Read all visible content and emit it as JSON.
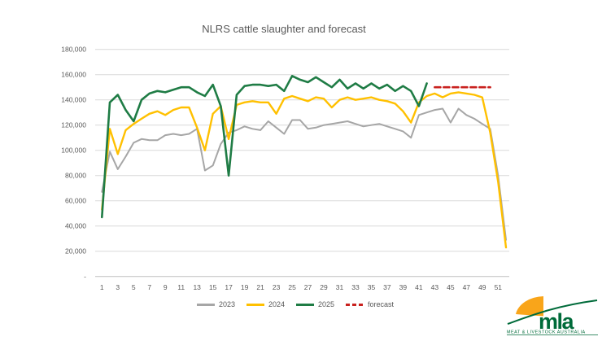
{
  "chart_data": {
    "type": "line",
    "title": "NLRS cattle slaughter and forecast",
    "xlabel": "",
    "ylabel": "",
    "x": [
      1,
      2,
      3,
      4,
      5,
      6,
      7,
      8,
      9,
      10,
      11,
      12,
      13,
      14,
      15,
      16,
      17,
      18,
      19,
      20,
      21,
      22,
      23,
      24,
      25,
      26,
      27,
      28,
      29,
      30,
      31,
      32,
      33,
      34,
      35,
      36,
      37,
      38,
      39,
      40,
      41,
      42,
      43,
      44,
      45,
      46,
      47,
      48,
      49,
      50,
      51,
      52
    ],
    "x_ticks": [
      1,
      3,
      5,
      7,
      9,
      11,
      13,
      15,
      17,
      19,
      21,
      23,
      25,
      27,
      29,
      31,
      33,
      35,
      37,
      39,
      41,
      43,
      45,
      47,
      49,
      51
    ],
    "y_ticks": [
      {
        "value": 0,
        "label": "-"
      },
      {
        "value": 20000,
        "label": "20,000"
      },
      {
        "value": 40000,
        "label": "40,000"
      },
      {
        "value": 60000,
        "label": "60,000"
      },
      {
        "value": 80000,
        "label": "80,000"
      },
      {
        "value": 100000,
        "label": "100,000"
      },
      {
        "value": 120000,
        "label": "120,000"
      },
      {
        "value": 140000,
        "label": "140,000"
      },
      {
        "value": 160000,
        "label": "160,000"
      },
      {
        "value": 180000,
        "label": "180,000"
      }
    ],
    "ylim": [
      0,
      180000
    ],
    "grid": "horizontal",
    "legend_position": "bottom",
    "series": [
      {
        "name": "2023",
        "color": "#a6a6a6",
        "style": "solid",
        "values": [
          67000,
          99000,
          85000,
          95000,
          106000,
          109000,
          108000,
          108000,
          112000,
          113000,
          112000,
          113000,
          117000,
          84000,
          88000,
          105000,
          114000,
          116000,
          119000,
          117000,
          116000,
          123000,
          118000,
          113000,
          124000,
          124000,
          117000,
          118000,
          120000,
          121000,
          122000,
          123000,
          121000,
          119000,
          120000,
          121000,
          119000,
          117000,
          115000,
          110000,
          128000,
          130000,
          132000,
          133000,
          122000,
          133000,
          128000,
          125000,
          121000,
          117000,
          80000,
          29000
        ]
      },
      {
        "name": "2024",
        "color": "#ffc000",
        "style": "solid",
        "values": [
          53000,
          117000,
          97000,
          116000,
          121000,
          125000,
          129000,
          131000,
          128000,
          132000,
          134000,
          134000,
          118000,
          100000,
          129000,
          135000,
          109000,
          136000,
          138000,
          139000,
          138000,
          138000,
          129000,
          141000,
          143000,
          141000,
          139000,
          142000,
          141000,
          134000,
          140000,
          142000,
          140000,
          141000,
          142000,
          140000,
          139000,
          137000,
          131000,
          122000,
          138000,
          143000,
          145000,
          142000,
          145000,
          146000,
          145000,
          144000,
          142000,
          114000,
          75000,
          23000
        ]
      },
      {
        "name": "2025",
        "color": "#1f7c45",
        "style": "solid",
        "values": [
          47000,
          138000,
          144000,
          132000,
          123000,
          140000,
          145000,
          147000,
          146000,
          148000,
          150000,
          150000,
          146000,
          143000,
          152000,
          135000,
          80000,
          144000,
          151000,
          152000,
          152000,
          151000,
          152000,
          147000,
          159000,
          156000,
          154000,
          158000,
          154000,
          150000,
          156000,
          149000,
          153000,
          149000,
          153000,
          149000,
          152000,
          147000,
          151000,
          147000,
          135000,
          153000,
          null,
          null,
          null,
          null,
          null,
          null,
          null,
          null,
          null,
          null
        ]
      },
      {
        "name": "forecast",
        "color": "#c9211e",
        "style": "dashed",
        "values": [
          null,
          null,
          null,
          null,
          null,
          null,
          null,
          null,
          null,
          null,
          null,
          null,
          null,
          null,
          null,
          null,
          null,
          null,
          null,
          null,
          null,
          null,
          null,
          null,
          null,
          null,
          null,
          null,
          null,
          null,
          null,
          null,
          null,
          null,
          null,
          null,
          null,
          null,
          null,
          null,
          null,
          null,
          150000,
          150000,
          150000,
          150000,
          150000,
          150000,
          150000,
          150000,
          null,
          null
        ]
      }
    ]
  },
  "colors": {
    "title_text": "#595959",
    "axis_text": "#595959",
    "gridline": "#d9d9d9",
    "axis_line": "#bfbfbf"
  },
  "logo": {
    "text": "mla",
    "caption": "MEAT & LIVESTOCK AUSTRALIA",
    "green": "#006b3a",
    "yellow": "#f9a51a"
  }
}
